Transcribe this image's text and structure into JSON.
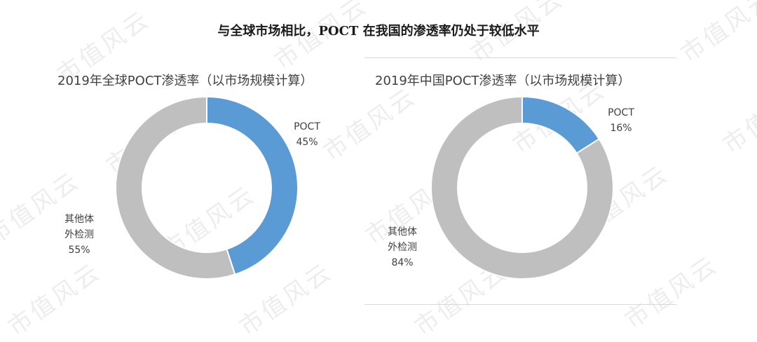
{
  "page": {
    "title": "与全球市场相比，POCT 在我国的渗透率仍处于较低水平",
    "watermark": "市值风云"
  },
  "chart_data": [
    {
      "type": "pie",
      "variant": "donut",
      "title": "2019年全球POCT渗透率（以市场规模计算）",
      "slices": [
        {
          "label": "POCT",
          "value": 45,
          "display": "45%",
          "color": "#5b9bd5"
        },
        {
          "label": "其他体外检测",
          "label_lines": [
            "其他体",
            "外检测"
          ],
          "value": 55,
          "display": "55%",
          "color": "#bfbfbf"
        }
      ]
    },
    {
      "type": "pie",
      "variant": "donut",
      "title": "2019年中国POCT渗透率（以市场规模计算）",
      "slices": [
        {
          "label": "POCT",
          "value": 16,
          "display": "16%",
          "color": "#5b9bd5"
        },
        {
          "label": "其他体外检测",
          "label_lines": [
            "其他体",
            "外检测"
          ],
          "value": 84,
          "display": "84%",
          "color": "#bfbfbf"
        }
      ]
    }
  ]
}
